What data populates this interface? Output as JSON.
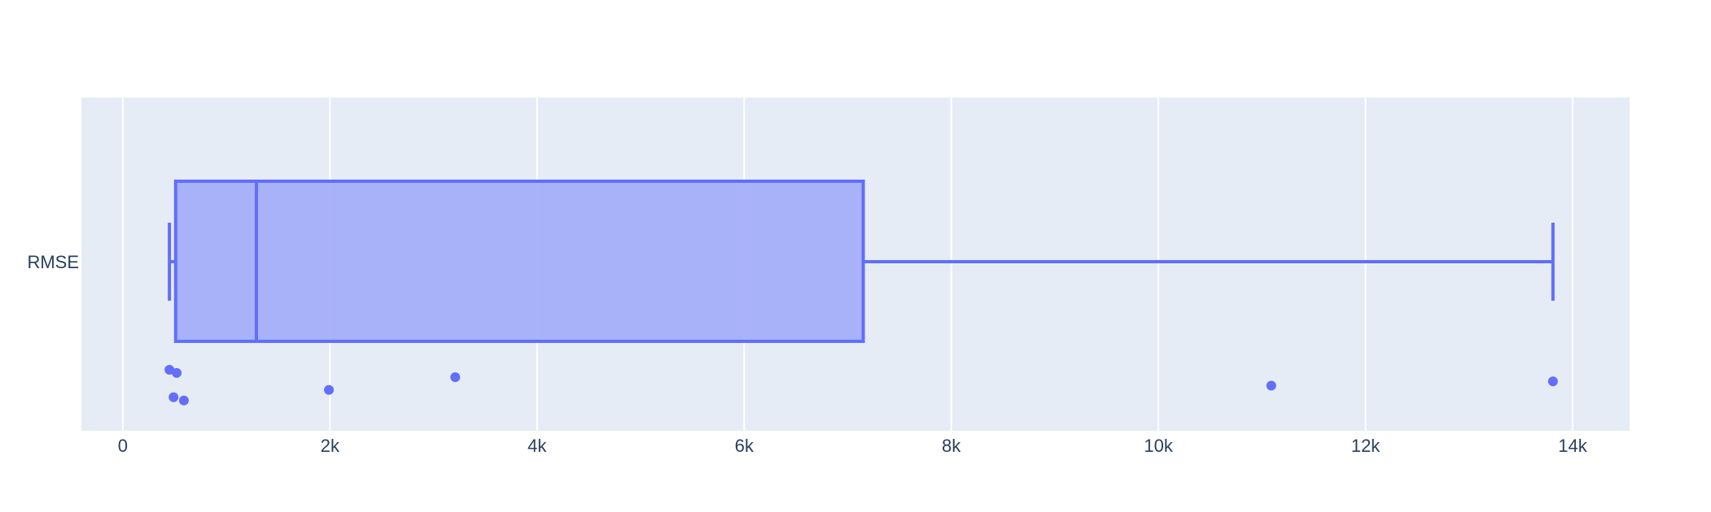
{
  "chart_data": {
    "type": "box",
    "orientation": "horizontal",
    "category": "RMSE",
    "xlim": [
      -400,
      14550
    ],
    "x_ticks": [
      0,
      2000,
      4000,
      6000,
      8000,
      10000,
      12000,
      14000
    ],
    "x_tick_labels": [
      "0",
      "2k",
      "4k",
      "6k",
      "8k",
      "10k",
      "12k",
      "14k"
    ],
    "grid": true,
    "box": {
      "lower_fence": 450,
      "q1": 510,
      "median": 1290,
      "q3": 7150,
      "upper_fence": 13810
    },
    "points": [
      {
        "x": 450,
        "jitter": 0.0
      },
      {
        "x": 520,
        "jitter": 0.03
      },
      {
        "x": 490,
        "jitter": 0.26
      },
      {
        "x": 590,
        "jitter": 0.29
      },
      {
        "x": 1990,
        "jitter": 0.19
      },
      {
        "x": 3210,
        "jitter": 0.07
      },
      {
        "x": 11090,
        "jitter": 0.15
      },
      {
        "x": 13810,
        "jitter": 0.11
      }
    ],
    "colors": {
      "plot_bg": "#e5ecf6",
      "grid": "#ffffff",
      "box_line": "#636efa",
      "box_fill": "#a3adf8",
      "marker": "#636efa",
      "text": "#2a3f5f"
    }
  }
}
